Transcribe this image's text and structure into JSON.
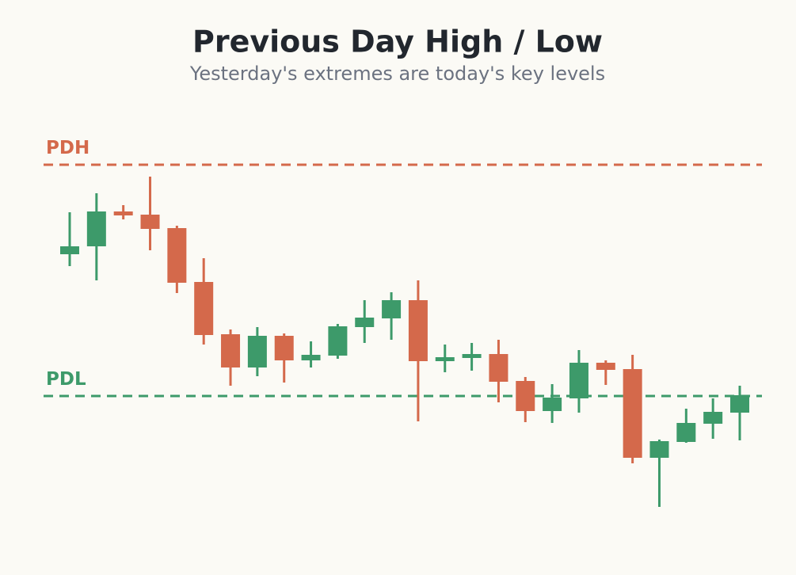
{
  "chart_data": {
    "type": "candlestick",
    "title": "Previous Day High / Low",
    "subtitle": "Yesterday's extremes are today's key levels",
    "up_color": "#3d9a6a",
    "down_color": "#d4694b",
    "ylim": [
      0,
      55
    ],
    "open": [
      32.9,
      33.9,
      38.3,
      37.9,
      36.2,
      29.4,
      22.8,
      18.6,
      22.6,
      19.5,
      20.1,
      23.7,
      24.8,
      27.1,
      19.4,
      19.8,
      20.3,
      16.9,
      13.1,
      14.7,
      19.2,
      18.4,
      7.2,
      9.2,
      11.5,
      12.9
    ],
    "high": [
      38.2,
      40.6,
      39.1,
      42.7,
      36.5,
      32.4,
      23.4,
      23.7,
      22.9,
      21.9,
      24.1,
      27.1,
      28.1,
      29.6,
      21.5,
      21.7,
      22.1,
      17.4,
      16.5,
      20.8,
      19.5,
      20.2,
      9.5,
      13.4,
      14.7,
      16.3
    ],
    "low": [
      31.4,
      29.6,
      37.3,
      33.4,
      28.0,
      21.5,
      16.3,
      17.5,
      16.7,
      18.6,
      19.7,
      21.7,
      22.1,
      11.8,
      18.0,
      18.2,
      14.2,
      11.7,
      11.6,
      12.9,
      16.4,
      6.5,
      1.0,
      9.1,
      9.6,
      9.4
    ],
    "close": [
      33.9,
      38.3,
      37.8,
      36.1,
      29.3,
      22.7,
      18.6,
      22.6,
      19.5,
      20.2,
      23.8,
      24.9,
      27.1,
      19.4,
      19.9,
      20.3,
      16.8,
      13.1,
      14.8,
      19.2,
      18.3,
      7.2,
      9.3,
      11.6,
      13.0,
      15.1
    ],
    "levels": [
      {
        "label": "PDH",
        "value": 44.2,
        "color": "#d4694b"
      },
      {
        "label": "PDL",
        "value": 15.0,
        "color": "#3d9a6a"
      }
    ]
  }
}
